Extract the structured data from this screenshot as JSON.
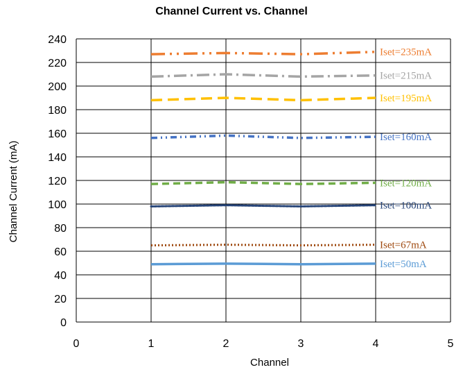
{
  "chart_data": {
    "type": "line",
    "title": "Channel Current vs. Channel",
    "xlabel": "Channel",
    "ylabel": "Channel Current (mA)",
    "xlim": [
      0,
      5
    ],
    "ylim": [
      0,
      240
    ],
    "xticks": [
      0,
      1,
      2,
      3,
      4,
      5
    ],
    "yticks": [
      0,
      20,
      40,
      60,
      80,
      100,
      120,
      140,
      160,
      180,
      200,
      220,
      240
    ],
    "grid": true,
    "legend": "inline-right",
    "x": [
      1,
      2,
      3,
      4
    ],
    "series": [
      {
        "name": "Iset=235mA",
        "values": [
          227,
          228,
          227,
          229
        ],
        "color": "#ED7D31",
        "dash": "long-dash-dot-dot"
      },
      {
        "name": "Iset=215mA",
        "values": [
          208,
          210,
          208,
          209
        ],
        "color": "#A5A5A5",
        "dash": "long-dash-dot"
      },
      {
        "name": "Iset=195mA",
        "values": [
          188,
          190,
          188,
          190
        ],
        "color": "#FFC000",
        "dash": "long-dash"
      },
      {
        "name": "Iset=160mA",
        "values": [
          156,
          158,
          156,
          157
        ],
        "color": "#4472C4",
        "dash": "dash-dot-dot"
      },
      {
        "name": "Iset=120mA",
        "values": [
          117,
          118.5,
          117,
          118
        ],
        "color": "#70AD47",
        "dash": "dash"
      },
      {
        "name": "Iset=100mA",
        "values": [
          98,
          99,
          98,
          99
        ],
        "color": "#264478",
        "dash": "round-dot"
      },
      {
        "name": "Iset=67mA",
        "values": [
          65,
          65.5,
          65,
          65.5
        ],
        "color": "#9E480E",
        "dash": "dot"
      },
      {
        "name": "Iset=50mA",
        "values": [
          49,
          49.5,
          49,
          49.5
        ],
        "color": "#5B9BD5",
        "dash": "solid"
      }
    ]
  }
}
